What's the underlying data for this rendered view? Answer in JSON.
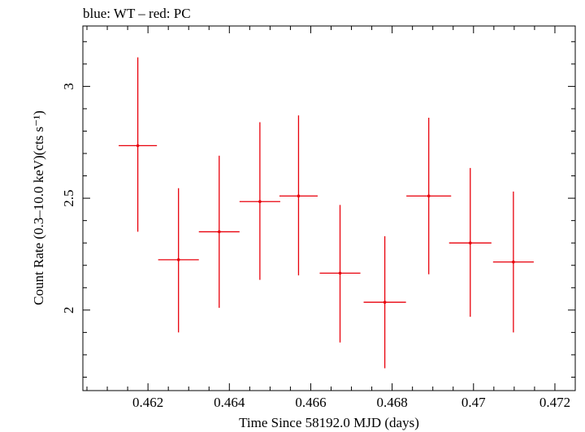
{
  "chart_data": {
    "type": "scatter",
    "title": "blue: WT – red: PC",
    "xlabel": "Time Since 58192.0 MJD (days)",
    "ylabel": "Count Rate (0.3–10.0 keV)(cts s⁻¹)",
    "xlim": [
      0.4604,
      0.4725
    ],
    "ylim": [
      1.64,
      3.27
    ],
    "xticks": [
      0.462,
      0.464,
      0.466,
      0.468,
      0.47,
      0.472
    ],
    "xtick_labels": [
      "0.462",
      "0.464",
      "0.466",
      "0.468",
      "0.47",
      "0.472"
    ],
    "yticks": [
      2,
      2.5,
      3
    ],
    "ytick_labels": [
      "2",
      "2.5",
      "3"
    ],
    "series": [
      {
        "name": "PC",
        "color": "#e8000b",
        "points": [
          {
            "x": 0.46175,
            "y": 2.735,
            "xerr": 0.00047,
            "yerr_lo": 0.385,
            "yerr_hi": 0.395
          },
          {
            "x": 0.46275,
            "y": 2.225,
            "xerr": 0.0005,
            "yerr_lo": 0.325,
            "yerr_hi": 0.32
          },
          {
            "x": 0.46375,
            "y": 2.35,
            "xerr": 0.0005,
            "yerr_lo": 0.34,
            "yerr_hi": 0.34
          },
          {
            "x": 0.46475,
            "y": 2.485,
            "xerr": 0.0005,
            "yerr_lo": 0.35,
            "yerr_hi": 0.355
          },
          {
            "x": 0.4657,
            "y": 2.51,
            "xerr": 0.00047,
            "yerr_lo": 0.355,
            "yerr_hi": 0.36
          },
          {
            "x": 0.46672,
            "y": 2.165,
            "xerr": 0.0005,
            "yerr_lo": 0.31,
            "yerr_hi": 0.305
          },
          {
            "x": 0.46782,
            "y": 2.035,
            "xerr": 0.00052,
            "yerr_lo": 0.295,
            "yerr_hi": 0.295
          },
          {
            "x": 0.4689,
            "y": 2.51,
            "xerr": 0.00055,
            "yerr_lo": 0.35,
            "yerr_hi": 0.35
          },
          {
            "x": 0.46992,
            "y": 2.3,
            "xerr": 0.00052,
            "yerr_lo": 0.33,
            "yerr_hi": 0.335
          },
          {
            "x": 0.47098,
            "y": 2.215,
            "xerr": 0.0005,
            "yerr_lo": 0.315,
            "yerr_hi": 0.315
          }
        ]
      }
    ]
  }
}
